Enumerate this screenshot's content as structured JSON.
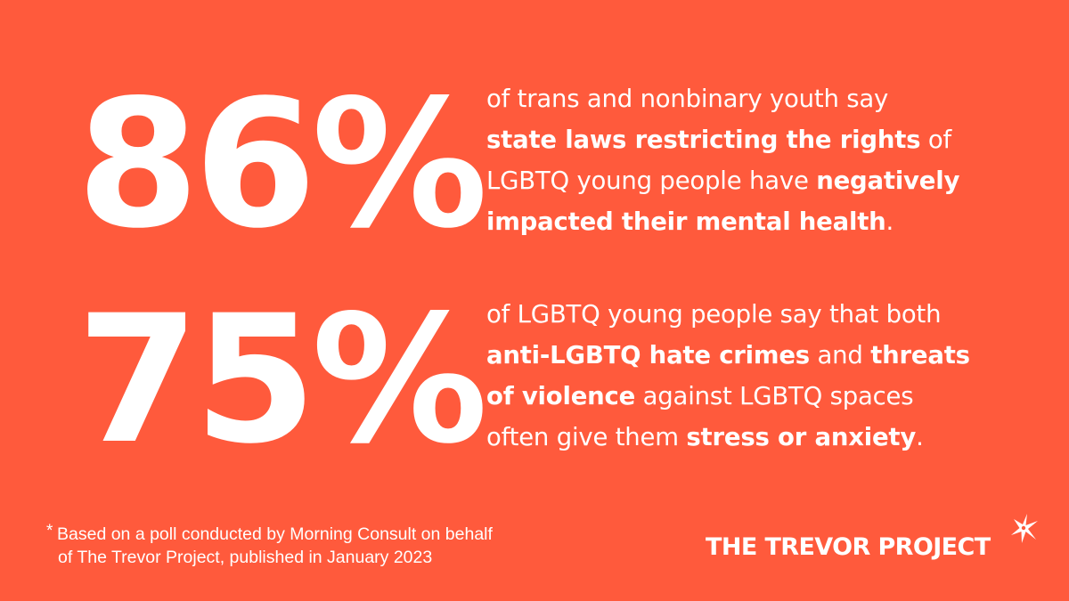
{
  "background_color": "#FF5A3C",
  "text_color": "#FFFFFF",
  "stats": [
    {
      "number": "86%",
      "lines": [
        [
          {
            "text": "of trans and nonbinary youth say",
            "bold": false
          }
        ],
        [
          {
            "text": "state laws restricting the rights",
            "bold": true
          },
          {
            "text": " of",
            "bold": false
          }
        ],
        [
          {
            "text": "LGBTQ young people have ",
            "bold": false
          },
          {
            "text": "negatively",
            "bold": true
          }
        ],
        [
          {
            "text": "impacted their mental health",
            "bold": true
          },
          {
            "text": ".",
            "bold": false
          }
        ]
      ]
    },
    {
      "number": "75%",
      "lines": [
        [
          {
            "text": "of LGBTQ young people say that both",
            "bold": false
          }
        ],
        [
          {
            "text": "anti-LGBTQ hate crimes",
            "bold": true
          },
          {
            "text": " and ",
            "bold": false
          },
          {
            "text": "threats",
            "bold": true
          }
        ],
        [
          {
            "text": "of violence",
            "bold": true
          },
          {
            "text": " against LGBTQ spaces",
            "bold": false
          }
        ],
        [
          {
            "text": "often give them ",
            "bold": false
          },
          {
            "text": "stress or anxiety",
            "bold": true
          },
          {
            "text": ".",
            "bold": false
          }
        ]
      ]
    }
  ],
  "footnote": {
    "marker": "*",
    "line1": "Based on a poll conducted by Morning Consult on behalf",
    "line2": "of The Trevor Project, published in January 2023"
  },
  "logo": {
    "text": "THE TREVOR PROJECT",
    "icon": "trevor-star-icon"
  }
}
